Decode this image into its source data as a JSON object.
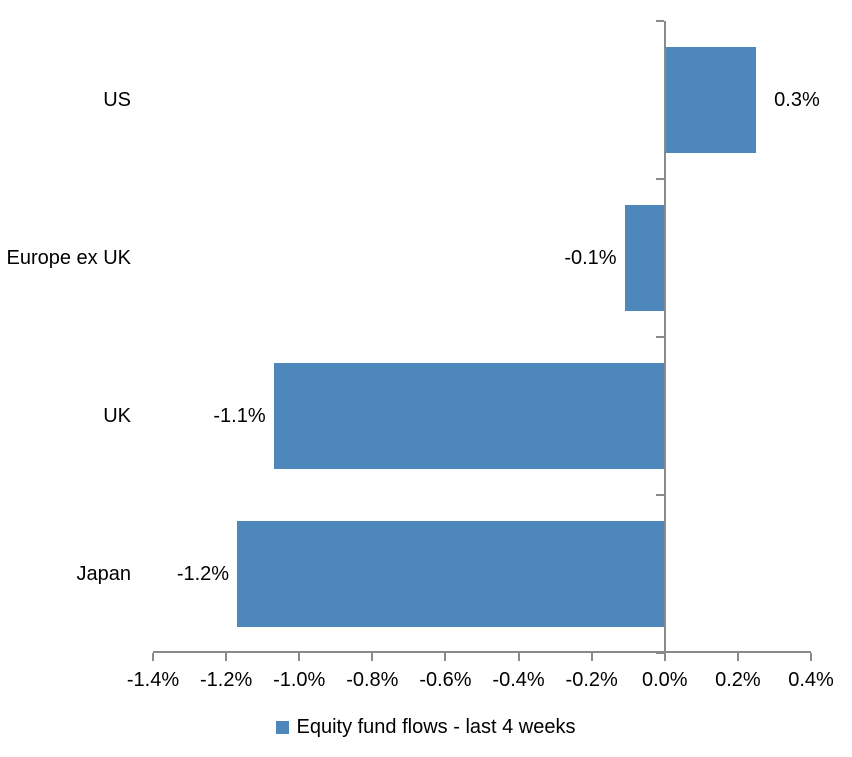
{
  "chart_data": {
    "type": "bar",
    "orientation": "horizontal",
    "title": "",
    "legend": "Equity fund flows - last 4 weeks",
    "legend_position": "bottom",
    "categories": [
      "US",
      "Europe ex UK",
      "UK",
      "Japan"
    ],
    "values": [
      0.25,
      -0.11,
      -1.07,
      -1.17
    ],
    "data_labels": [
      "0.3%",
      "-0.1%",
      "-1.1%",
      "-1.2%"
    ],
    "xlabel": "",
    "ylabel": "",
    "xlim": [
      -1.4,
      0.4
    ],
    "x_ticks": [
      -1.4,
      -1.2,
      -1.0,
      -0.8,
      -0.6,
      -0.4,
      -0.2,
      0.0,
      0.2,
      0.4
    ],
    "x_tick_labels": [
      "-1.4%",
      "-1.2%",
      "-1.0%",
      "-0.8%",
      "-0.6%",
      "-0.4%",
      "-0.2%",
      "0.0%",
      "0.2%",
      "0.4%"
    ],
    "grid": false,
    "colors": {
      "bar": "#4E87BC",
      "axis": "#8A8A8A",
      "text": "#000000",
      "background": "#FFFFFF"
    }
  }
}
